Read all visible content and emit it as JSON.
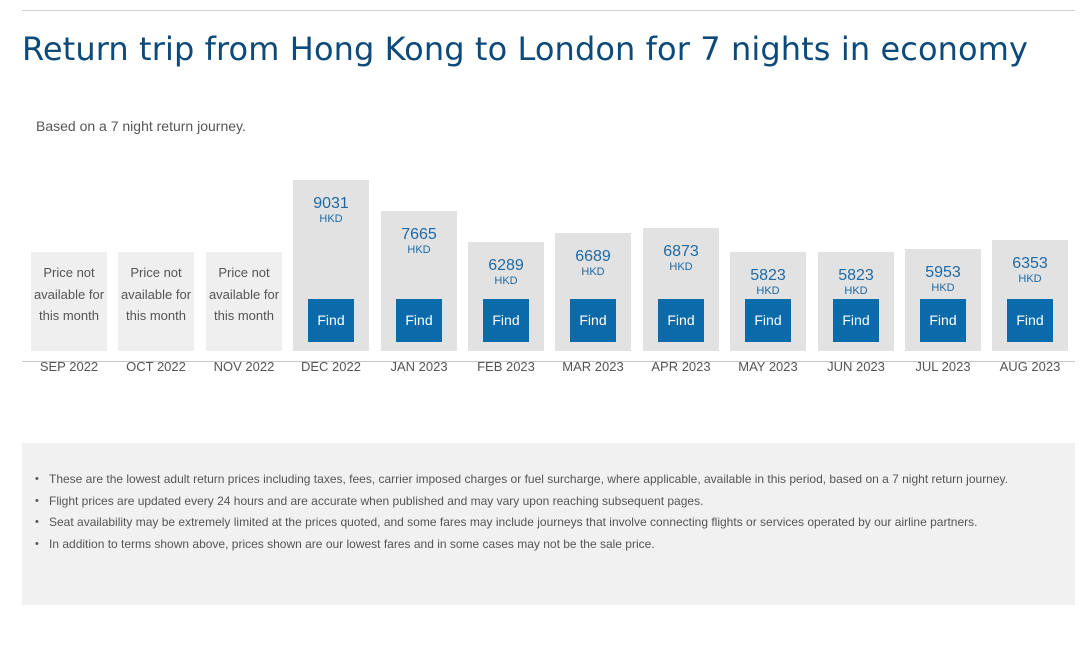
{
  "page": {
    "title": "Return trip from Hong Kong to London for 7 nights in economy",
    "subtitle": "Based on a 7 night return journey."
  },
  "chart": {
    "unavailable_text": "Price not available for this month",
    "unavailable_lines": [
      "Price not",
      "available for",
      "this month"
    ],
    "currency": "HKD",
    "find_label": "Find",
    "colors": {
      "bar": "#e2e2e2",
      "bar_unavailable": "#efefef",
      "button": "#0a6aaa",
      "price_text": "#1f6aa5",
      "title": "#0b4a7a"
    },
    "months": [
      {
        "label": "SEP 2022",
        "price": null,
        "available": false
      },
      {
        "label": "OCT 2022",
        "price": null,
        "available": false
      },
      {
        "label": "NOV 2022",
        "price": null,
        "available": false
      },
      {
        "label": "DEC 2022",
        "price": "9031",
        "available": true
      },
      {
        "label": "JAN 2023",
        "price": "7665",
        "available": true
      },
      {
        "label": "FEB 2023",
        "price": "6289",
        "available": true
      },
      {
        "label": "MAR 2023",
        "price": "6689",
        "available": true
      },
      {
        "label": "APR 2023",
        "price": "6873",
        "available": true
      },
      {
        "label": "MAY 2023",
        "price": "5823",
        "available": true
      },
      {
        "label": "JUN 2023",
        "price": "5823",
        "available": true
      },
      {
        "label": "JUL 2023",
        "price": "5953",
        "available": true
      },
      {
        "label": "AUG 2023",
        "price": "6353",
        "available": true
      }
    ]
  },
  "chart_data": {
    "type": "bar",
    "title": "Return trip from Hong Kong to London for 7 nights in economy",
    "subtitle": "Based on a 7 night return journey.",
    "categories": [
      "SEP 2022",
      "OCT 2022",
      "NOV 2022",
      "DEC 2022",
      "JAN 2023",
      "FEB 2023",
      "MAR 2023",
      "APR 2023",
      "MAY 2023",
      "JUN 2023",
      "JUL 2023",
      "AUG 2023"
    ],
    "values": [
      null,
      null,
      null,
      9031,
      7665,
      6289,
      6689,
      6873,
      5823,
      5823,
      5953,
      6353
    ],
    "unit": "HKD",
    "xlabel": "",
    "ylabel": "",
    "grid": false,
    "legend": "none",
    "annotations": [
      "Price not available for this month (SEP 2022, OCT 2022, NOV 2022)"
    ]
  },
  "notes": {
    "items": [
      "These are the lowest adult return prices including taxes, fees, carrier imposed charges or fuel surcharge, where applicable, available in this period, based on a 7 night return journey.",
      "Flight prices are updated every 24 hours and are accurate when published and may vary upon reaching subsequent pages.",
      "Seat availability may be extremely limited at the prices quoted, and some fares may include journeys that involve connecting flights or services operated by our airline partners.",
      "In addition to terms shown above, prices shown are our lowest fares and in some cases may not be the sale price."
    ]
  }
}
